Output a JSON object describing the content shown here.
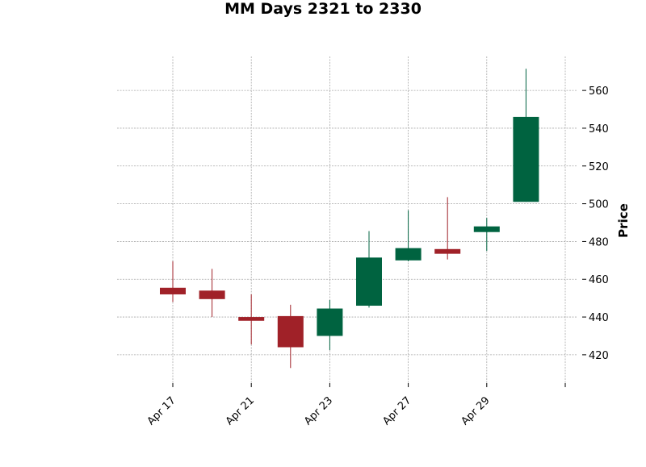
{
  "chart_data": {
    "type": "candlestick",
    "title": "MM Days 2321 to 2330",
    "xlabel": "",
    "ylabel": "Price",
    "ylim": [
      405,
      578
    ],
    "yticks": [
      420,
      440,
      460,
      480,
      500,
      520,
      540,
      560
    ],
    "xtick_labels": [
      "Apr 17",
      "Apr 21",
      "Apr 23",
      "Apr 27",
      "Apr 29",
      ""
    ],
    "xtick_index": [
      0,
      2,
      4,
      6,
      8,
      10
    ],
    "grid": true,
    "up_color": "#006340",
    "down_color": "#a02128",
    "candles": [
      {
        "open": 455.5,
        "high": 469.5,
        "low": 448.0,
        "close": 452.0
      },
      {
        "open": 454.0,
        "high": 465.5,
        "low": 440.0,
        "close": 449.5
      },
      {
        "open": 440.0,
        "high": 452.0,
        "low": 425.5,
        "close": 438.0
      },
      {
        "open": 440.5,
        "high": 446.5,
        "low": 413.0,
        "close": 424.0
      },
      {
        "open": 430.0,
        "high": 449.0,
        "low": 422.5,
        "close": 444.5
      },
      {
        "open": 446.0,
        "high": 485.5,
        "low": 445.0,
        "close": 471.5
      },
      {
        "open": 470.0,
        "high": 496.5,
        "low": 469.5,
        "close": 476.5
      },
      {
        "open": 476.0,
        "high": 503.5,
        "low": 470.5,
        "close": 473.5
      },
      {
        "open": 485.0,
        "high": 492.5,
        "low": 475.0,
        "close": 488.0
      },
      {
        "open": 501.0,
        "high": 571.5,
        "low": 501.0,
        "close": 546.0
      }
    ]
  }
}
